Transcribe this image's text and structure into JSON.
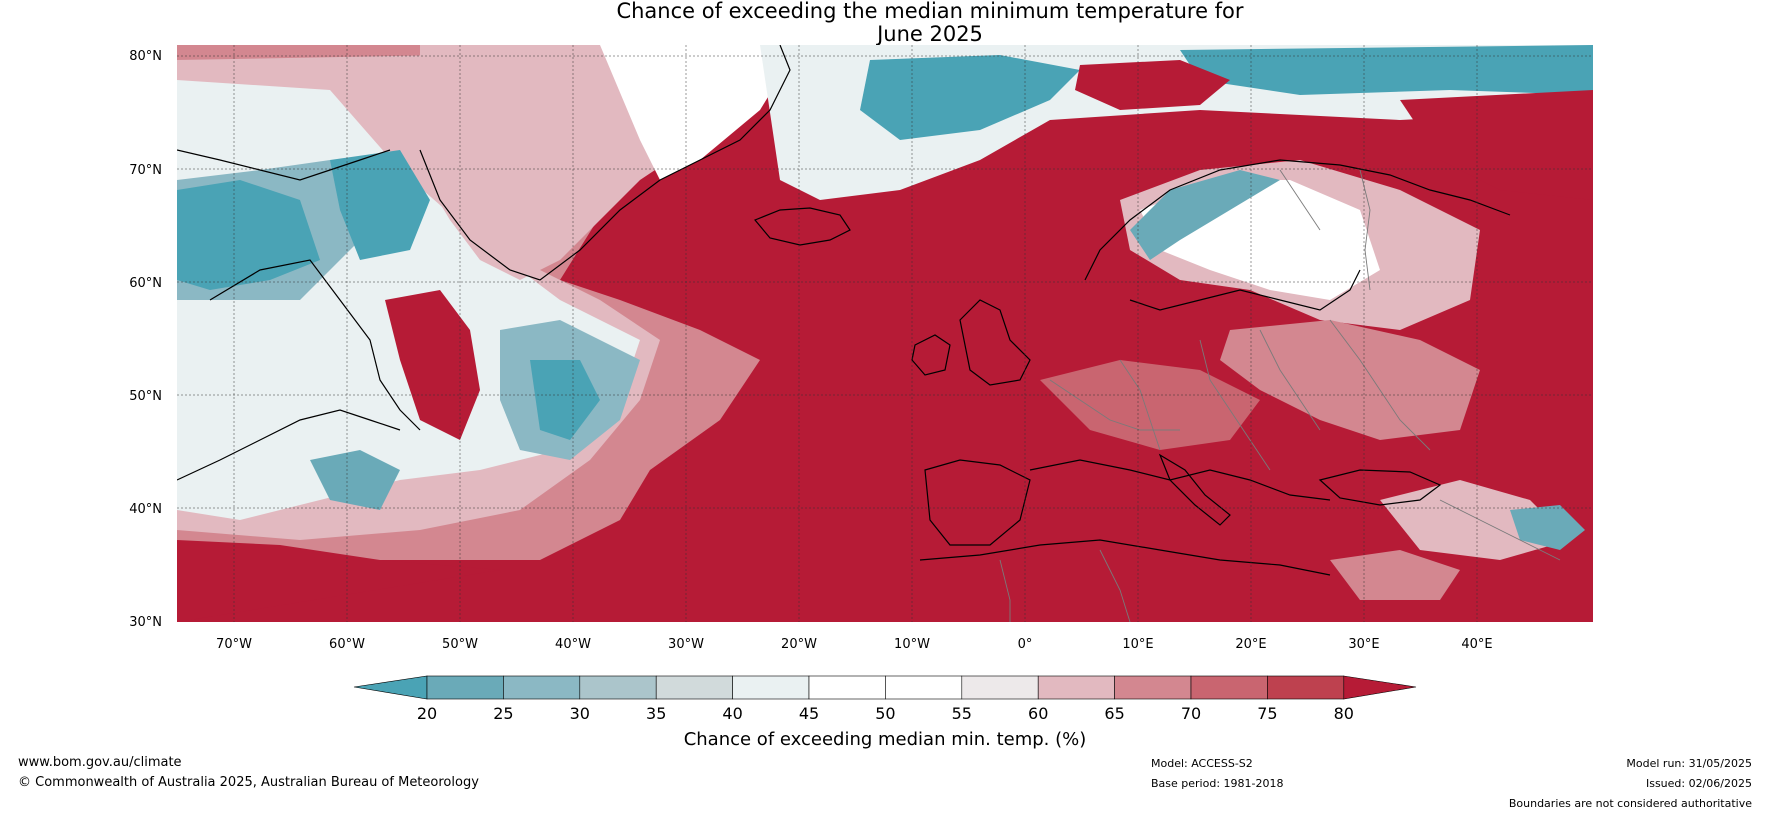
{
  "title": {
    "line1": "Chance of exceeding the median minimum temperature for",
    "line2": "June 2025"
  },
  "map": {
    "lat_ticks": [
      "80°N",
      "70°N",
      "60°N",
      "50°N",
      "40°N",
      "30°N"
    ],
    "lon_ticks": [
      "70°W",
      "60°W",
      "50°W",
      "40°W",
      "30°W",
      "20°W",
      "10°W",
      "0°",
      "10°E",
      "20°E",
      "30°E",
      "40°E"
    ]
  },
  "colorbar": {
    "label": "Chance of exceeding median min. temp. (%)",
    "ticks": [
      "20",
      "25",
      "30",
      "35",
      "40",
      "45",
      "50",
      "55",
      "60",
      "65",
      "70",
      "75",
      "80"
    ],
    "colors": {
      "below20": "#4aa3b5",
      "b20_25": "#6aaab8",
      "b25_30": "#8bb8c4",
      "b30_35": "#abc5cb",
      "b35_40": "#d1dadb",
      "b40_45": "#eaf1f2",
      "b45_50": "#ffffff",
      "b50_55": "#ffffff",
      "b55_60": "#ede9ea",
      "b60_65": "#e2b9c0",
      "b65_70": "#d38790",
      "b70_75": "#c96570",
      "b75_80": "#be414f",
      "above80": "#b61b36"
    }
  },
  "footer": {
    "website": "www.bom.gov.au/climate",
    "copyright": "© Commonwealth of Australia 2025, Australian Bureau of Meteorology",
    "model": "Model: ACCESS-S2",
    "base_period": "Base period: 1981-2018",
    "model_run": "Model run: 31/05/2025",
    "issued": "Issued: 02/06/2025",
    "boundaries": "Boundaries are not considered authoritative"
  }
}
